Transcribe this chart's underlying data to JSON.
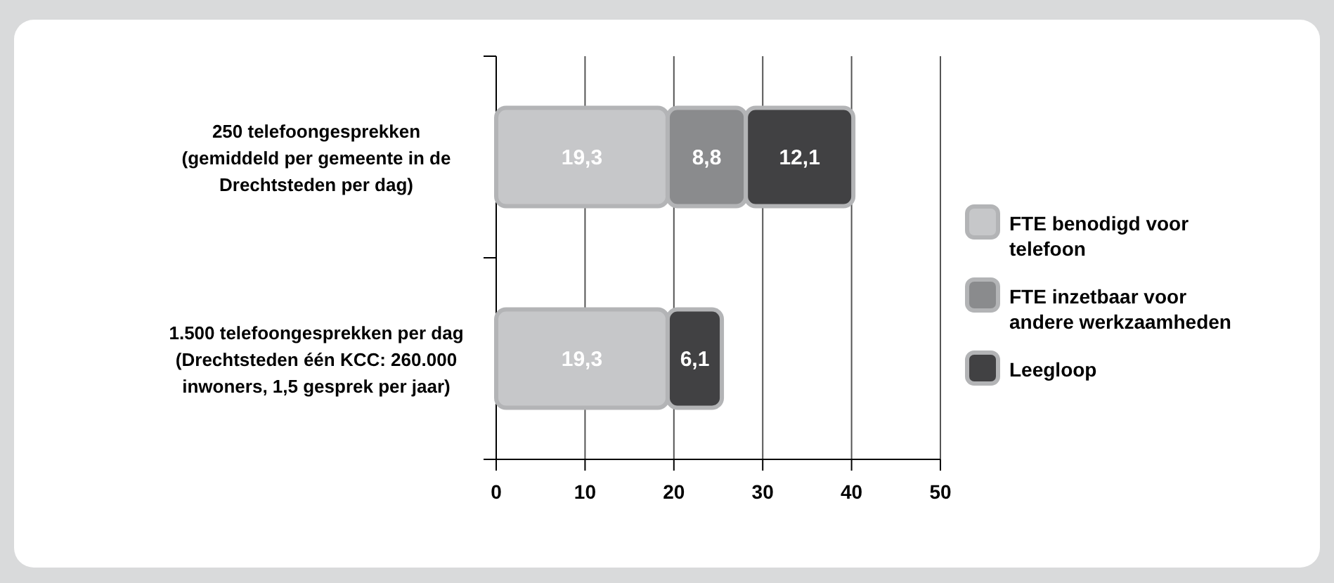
{
  "chart_data": {
    "type": "bar",
    "orientation": "horizontal",
    "stacked": true,
    "categories": [
      "250 telefoongesprekken (gemiddeld per gemeente in de Drechtsteden per dag)",
      "1.500 telefoongesprekken per dag (Drechtsteden één KCC: 260.000 inwoners, 1,5 gesprek per jaar)"
    ],
    "series": [
      {
        "name": "FTE benodigd voor telefoon",
        "color": "#c6c7c9",
        "values": [
          19.3,
          19.3
        ]
      },
      {
        "name": "FTE inzetbaar voor andere werkzaamheden",
        "color": "#8a8b8d",
        "values": [
          8.8,
          null
        ]
      },
      {
        "name": "Leegloop",
        "color": "#414143",
        "values": [
          12.1,
          6.1
        ]
      }
    ],
    "value_labels": [
      [
        "19,3",
        "19,3"
      ],
      [
        "8,8",
        null
      ],
      [
        "12,1",
        "6,1"
      ]
    ],
    "xlim": [
      0,
      50
    ],
    "xticks": [
      0,
      10,
      20,
      30,
      40,
      50
    ],
    "grid": "x",
    "legend": "right"
  }
}
